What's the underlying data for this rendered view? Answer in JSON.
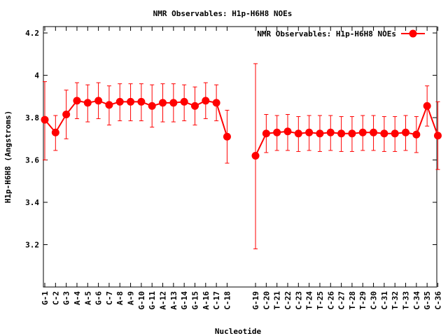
{
  "chart_data": {
    "type": "line",
    "title": "NMR Observables: H1p-H6H8 NOEs",
    "xlabel": "Nucleotide",
    "ylabel": "H1p-H6H8 (Angstroms)",
    "ylim": [
      3.0,
      4.23
    ],
    "yticks": [
      3.2,
      3.4,
      3.6,
      3.8,
      4,
      4.2
    ],
    "ytick_labels": [
      "3.2",
      "3.4",
      "3.6",
      "3.8",
      "4",
      "4.2"
    ],
    "legend_position": "top-right",
    "series": [
      {
        "name": "NMR Observables: H1p-H6H8 NOEs",
        "color": "#ff0000",
        "segments": [
          {
            "categories": [
              "G-1",
              "C-2",
              "G-3",
              "A-4",
              "A-5",
              "G-6",
              "C-7",
              "A-8",
              "A-9",
              "G-10",
              "G-11",
              "A-12",
              "A-13",
              "G-14",
              "G-15",
              "A-16",
              "C-17",
              "C-18"
            ],
            "values": [
              3.79,
              3.73,
              3.815,
              3.88,
              3.87,
              3.88,
              3.86,
              3.875,
              3.875,
              3.875,
              3.855,
              3.87,
              3.87,
              3.875,
              3.855,
              3.88,
              3.87,
              3.71
            ],
            "err_low": [
              3.6,
              3.645,
              3.7,
              3.795,
              3.78,
              3.795,
              3.765,
              3.785,
              3.785,
              3.785,
              3.755,
              3.78,
              3.78,
              3.785,
              3.765,
              3.795,
              3.785,
              3.585
            ],
            "err_high": [
              3.97,
              3.81,
              3.93,
              3.965,
              3.955,
              3.965,
              3.95,
              3.96,
              3.96,
              3.96,
              3.955,
              3.96,
              3.96,
              3.955,
              3.945,
              3.965,
              3.955,
              3.835
            ]
          },
          {
            "categories": [
              "G-19",
              "C-20",
              "T-21",
              "C-22",
              "C-23",
              "T-24",
              "T-25",
              "C-26",
              "C-27",
              "T-28",
              "T-29",
              "C-30",
              "C-31",
              "T-32",
              "T-33",
              "C-34",
              "G-35",
              "C-36"
            ],
            "values": [
              3.62,
              3.725,
              3.73,
              3.735,
              3.725,
              3.73,
              3.725,
              3.73,
              3.725,
              3.725,
              3.73,
              3.73,
              3.725,
              3.725,
              3.73,
              3.72,
              3.855,
              3.715
            ],
            "err_low": [
              3.18,
              3.635,
              3.645,
              3.645,
              3.64,
              3.645,
              3.64,
              3.645,
              3.64,
              3.64,
              3.645,
              3.645,
              3.64,
              3.64,
              3.645,
              3.635,
              3.76,
              3.555
            ],
            "err_high": [
              4.055,
              3.815,
              3.81,
              3.815,
              3.805,
              3.81,
              3.81,
              3.81,
              3.805,
              3.805,
              3.81,
              3.81,
              3.805,
              3.805,
              3.81,
              3.805,
              3.95,
              3.875
            ]
          }
        ]
      }
    ]
  }
}
